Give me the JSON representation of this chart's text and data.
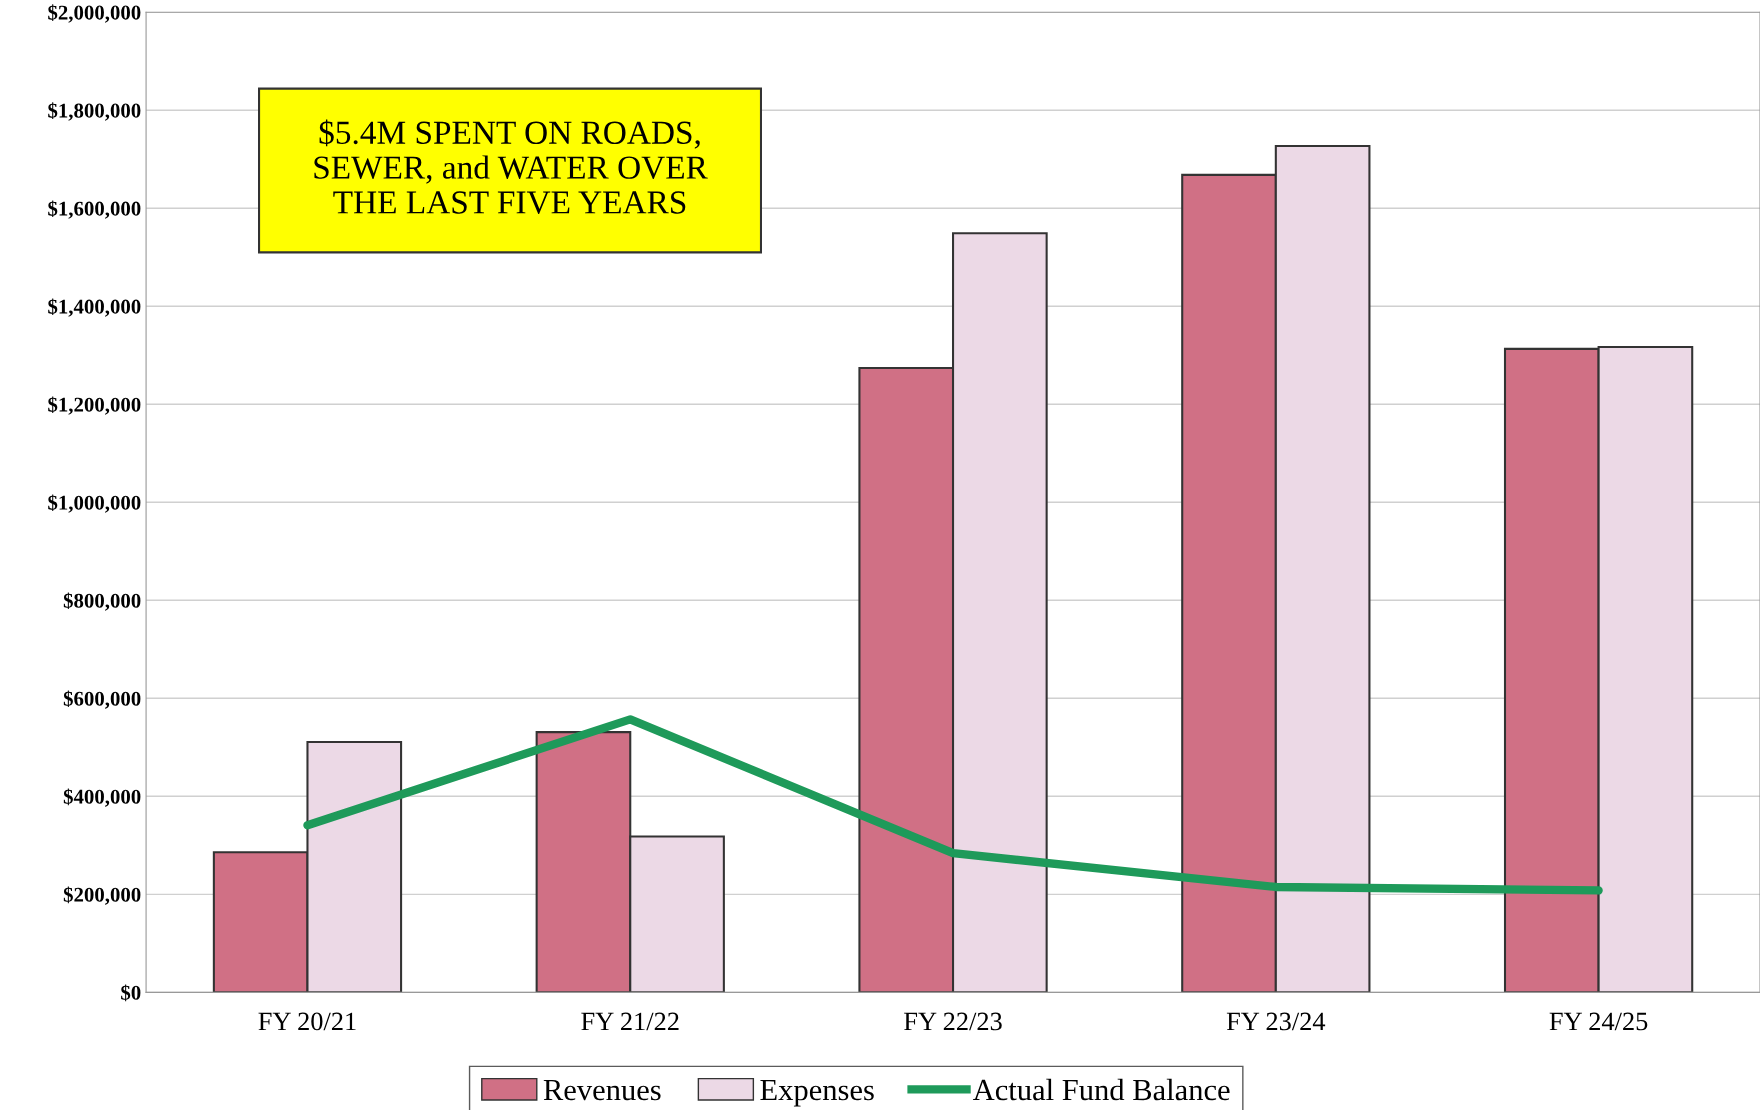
{
  "chart_data": {
    "type": "bar",
    "categories": [
      "FY 20/21",
      "FY 21/22",
      "FY 22/23",
      "FY 23/24",
      "FY 24/25"
    ],
    "series": [
      {
        "name": "Revenues",
        "color": "#d07085",
        "values": [
          286000,
          531000,
          1274000,
          1668000,
          1313000
        ]
      },
      {
        "name": "Expenses",
        "color": "#ecd9e6",
        "values": [
          511000,
          318000,
          1549000,
          1727000,
          1317000
        ]
      },
      {
        "name": "Actual Fund Balance",
        "type": "line",
        "color": "#1e9a5a",
        "values": [
          341000,
          557000,
          284000,
          215000,
          208000
        ]
      }
    ],
    "ylim": [
      0,
      2000000
    ],
    "yticks": [
      {
        "value": 0,
        "label": "$0"
      },
      {
        "value": 200000,
        "label": "$200,000"
      },
      {
        "value": 400000,
        "label": "$400,000"
      },
      {
        "value": 600000,
        "label": "$600,000"
      },
      {
        "value": 800000,
        "label": "$800,000"
      },
      {
        "value": 1000000,
        "label": "$1,000,000"
      },
      {
        "value": 1200000,
        "label": "$1,200,000"
      },
      {
        "value": 1400000,
        "label": "$1,400,000"
      },
      {
        "value": 1600000,
        "label": "$1,600,000"
      },
      {
        "value": 1800000,
        "label": "$1,800,000"
      },
      {
        "value": 2000000,
        "label": "$2,000,000"
      }
    ],
    "grid": "y",
    "legend": "bottom",
    "marker": "none",
    "line_style": "solid",
    "annotations": [
      "$5.4M SPENT ON ROADS,\nSEWER, and WATER OVER\nTHE LAST FIVE YEARS"
    ]
  }
}
